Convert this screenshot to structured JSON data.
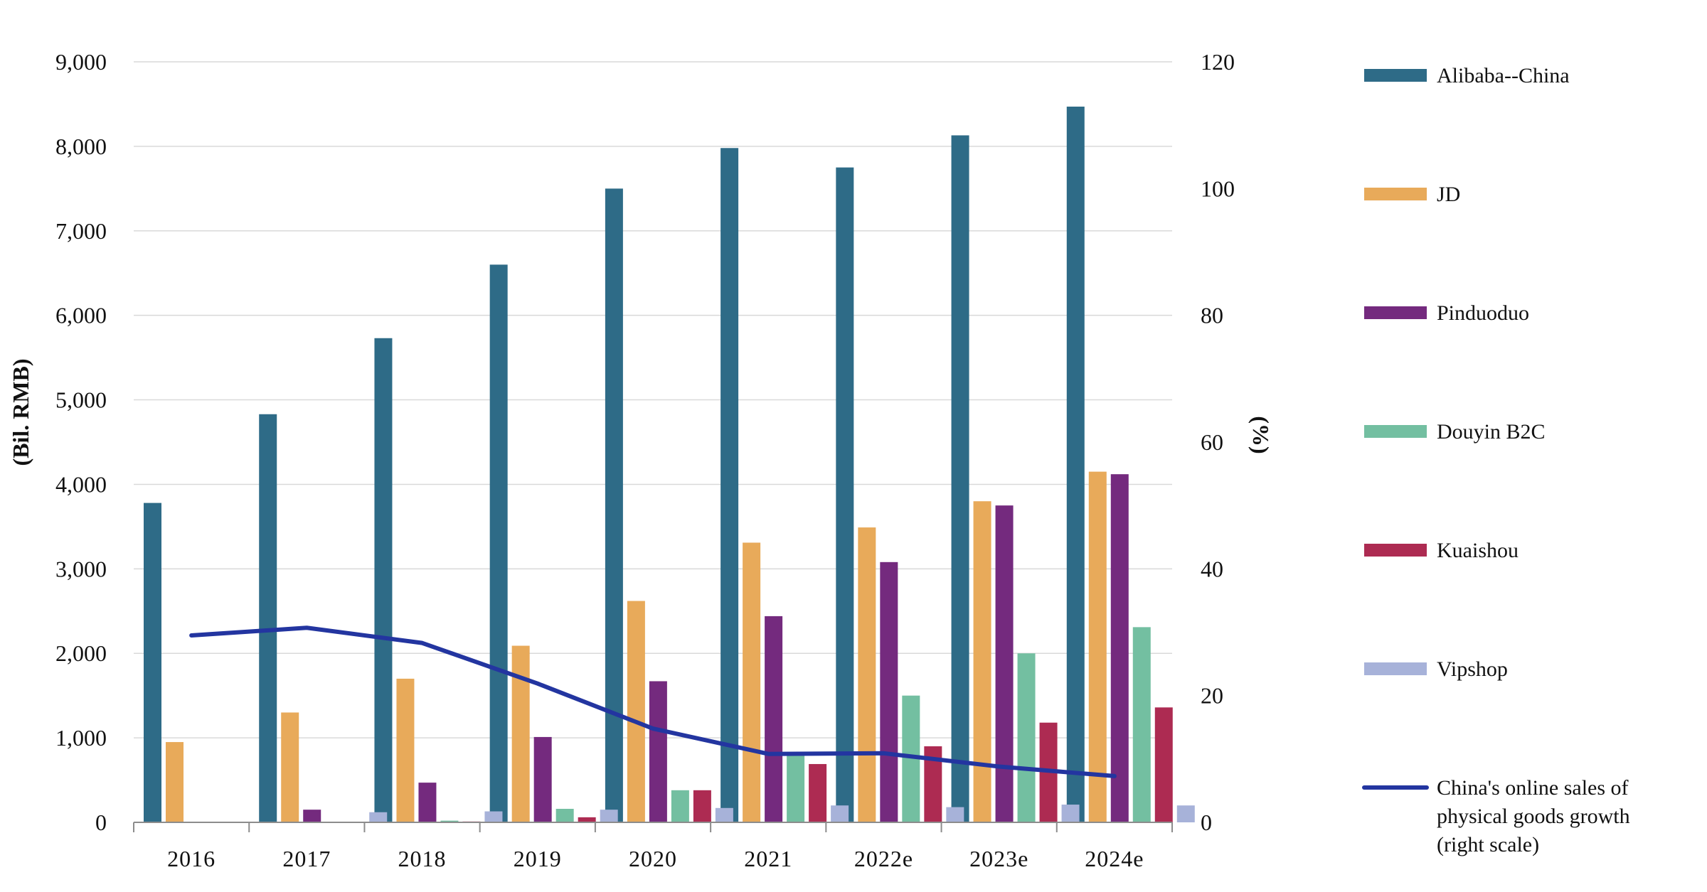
{
  "chart_data": {
    "type": "bar",
    "title": "",
    "categories": [
      "2016",
      "2017",
      "2018",
      "2019",
      "2020",
      "2021",
      "2022e",
      "2023e",
      "2024e"
    ],
    "ylabel": "(Bil. RMB)",
    "y2label": "(%)",
    "ylim": [
      0,
      9000
    ],
    "y2lim": [
      0,
      120
    ],
    "yticks": [
      "0",
      "1,000",
      "2,000",
      "3,000",
      "4,000",
      "5,000",
      "6,000",
      "7,000",
      "8,000",
      "9,000"
    ],
    "y2ticks": [
      "0",
      "20",
      "40",
      "60",
      "80",
      "100",
      "120"
    ],
    "grid": true,
    "legend_position": "right",
    "series": [
      {
        "name": "Alibaba--China",
        "color": "#2e6b87",
        "values": [
          3780,
          4830,
          5730,
          6600,
          7500,
          7980,
          7750,
          8130,
          8470
        ]
      },
      {
        "name": "JD",
        "color": "#e8aa5a",
        "values": [
          950,
          1300,
          1700,
          2090,
          2620,
          3310,
          3490,
          3800,
          4150
        ]
      },
      {
        "name": "Pinduoduo",
        "color": "#742a7e",
        "values": [
          0,
          150,
          470,
          1010,
          1670,
          2440,
          3080,
          3750,
          4120
        ]
      },
      {
        "name": "Douyin B2C",
        "color": "#73bfa1",
        "values": [
          0,
          0,
          20,
          160,
          380,
          820,
          1500,
          2000,
          2310
        ]
      },
      {
        "name": "Kuaishou",
        "color": "#ad2b52",
        "values": [
          0,
          0,
          10,
          60,
          380,
          690,
          900,
          1180,
          1360
        ]
      },
      {
        "name": "Vipshop",
        "color": "#a7b2d9",
        "values": [
          0,
          120,
          130,
          150,
          170,
          200,
          180,
          210,
          200
        ]
      }
    ],
    "line": {
      "name": "China's online sales of physical goods growth (right scale)",
      "legend_lines": [
        "China's online sales of",
        "physical goods growth",
        "(right scale)"
      ],
      "color": "#2335a0",
      "axis": "right",
      "values": [
        29.5,
        30.7,
        28.3,
        21.9,
        14.8,
        10.8,
        10.9,
        8.8,
        7.3
      ]
    }
  }
}
